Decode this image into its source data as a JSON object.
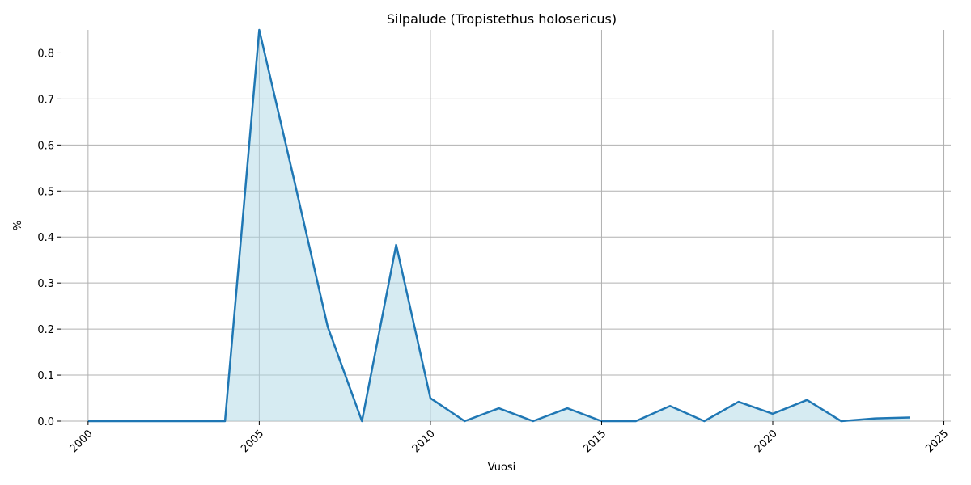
{
  "chart_data": {
    "type": "area",
    "title": "Silpalude (Tropistethus holosericus)",
    "xlabel": "Vuosi",
    "ylabel": "%",
    "xlim": [
      1999.2,
      2025.2
    ],
    "ylim": [
      0,
      0.85
    ],
    "xticks": [
      2000,
      2005,
      2010,
      2015,
      2020,
      2025
    ],
    "yticks": [
      0.0,
      0.1,
      0.2,
      0.3,
      0.4,
      0.5,
      0.6,
      0.7,
      0.8
    ],
    "grid": true,
    "x": [
      2000,
      2001,
      2002,
      2003,
      2004,
      2005,
      2006,
      2007,
      2008,
      2009,
      2010,
      2011,
      2012,
      2013,
      2014,
      2015,
      2016,
      2017,
      2018,
      2019,
      2020,
      2021,
      2022,
      2023,
      2024
    ],
    "values": [
      0,
      0,
      0,
      0,
      0,
      0.85,
      0.53,
      0.205,
      0,
      0.383,
      0.05,
      0,
      0.028,
      0,
      0.028,
      0,
      0,
      0.033,
      0,
      0.042,
      0.016,
      0.046,
      0,
      0.006,
      0.008
    ],
    "line_color": "#1f77b4",
    "fill_color": "#add8e6"
  }
}
